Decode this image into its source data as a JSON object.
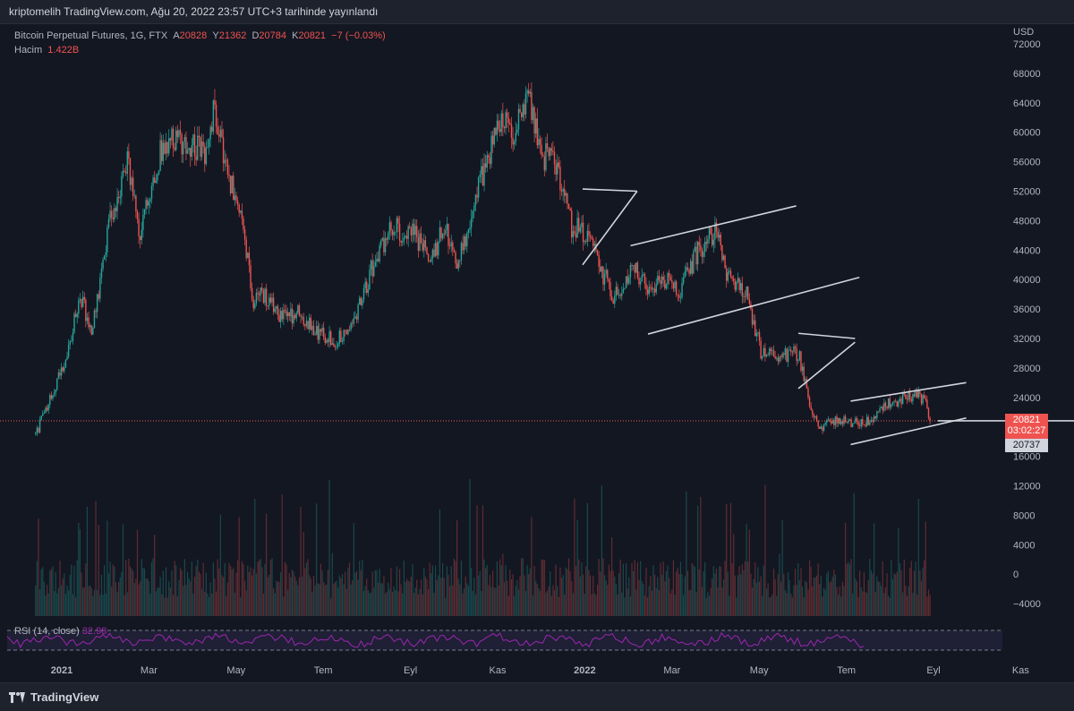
{
  "header": {
    "publish_text": "kriptomelih TradingView.com, Ağu 20, 2022 23:57 UTC+3 tarihinde yayınlandı"
  },
  "legend": {
    "symbol": "Bitcoin Perpetual Futures, 1G, FTX",
    "o_label": "A",
    "o_value": "20828",
    "h_label": "Y",
    "h_value": "21362",
    "l_label": "D",
    "l_value": "20784",
    "c_label": "K",
    "c_value": "20821",
    "change": "−7 (−0.03%)",
    "volume_label": "Hacim",
    "volume_value": "1.422B"
  },
  "axis": {
    "currency": "USD"
  },
  "badges": {
    "last_price": "20821",
    "countdown": "03:02:27",
    "low_price": "20737"
  },
  "rsi": {
    "label": "RSI (14, close)",
    "value": "32.98"
  },
  "footer": {
    "brand": "TradingView"
  },
  "colors": {
    "up": "#26a69a",
    "down": "#ef5350",
    "rsi": "#9c27b0",
    "lines": "#d1d4dc",
    "background": "#131722"
  },
  "chart_data": {
    "type": "candlestick",
    "title": "Bitcoin Perpetual Futures, 1G, FTX",
    "ylabel": "USD",
    "ylim": [
      -6000,
      72000
    ],
    "y_ticks": [
      72000,
      68000,
      64000,
      60000,
      56000,
      52000,
      48000,
      44000,
      40000,
      36000,
      32000,
      28000,
      24000,
      20000,
      16000,
      12000,
      8000,
      4000,
      0,
      -4000
    ],
    "x_ticks": [
      "2021",
      "Mar",
      "May",
      "Tem",
      "Eyl",
      "Kas",
      "2022",
      "Mar",
      "May",
      "Tem",
      "Eyl",
      "Kas"
    ],
    "x_tick_months": [
      0,
      2,
      4,
      6,
      8,
      10,
      12,
      14,
      16,
      18,
      20,
      22
    ],
    "last_close": 20821,
    "last_low_marker": 20737,
    "price_path": [
      {
        "m": -0.6,
        "p": 19000
      },
      {
        "m": 0.1,
        "p": 29000
      },
      {
        "m": 0.4,
        "p": 38000
      },
      {
        "m": 0.7,
        "p": 33000
      },
      {
        "m": 1.1,
        "p": 48000
      },
      {
        "m": 1.5,
        "p": 56000
      },
      {
        "m": 1.8,
        "p": 46000
      },
      {
        "m": 2.3,
        "p": 58000
      },
      {
        "m": 2.8,
        "p": 59000
      },
      {
        "m": 3.3,
        "p": 57000
      },
      {
        "m": 3.5,
        "p": 63000
      },
      {
        "m": 3.75,
        "p": 55000
      },
      {
        "m": 4.1,
        "p": 50000
      },
      {
        "m": 4.4,
        "p": 37000
      },
      {
        "m": 4.6,
        "p": 38000
      },
      {
        "m": 5.0,
        "p": 35000
      },
      {
        "m": 5.5,
        "p": 35500
      },
      {
        "m": 5.8,
        "p": 33000
      },
      {
        "m": 6.3,
        "p": 31500
      },
      {
        "m": 6.8,
        "p": 36000
      },
      {
        "m": 7.2,
        "p": 43000
      },
      {
        "m": 7.6,
        "p": 47000
      },
      {
        "m": 8.1,
        "p": 46000
      },
      {
        "m": 8.5,
        "p": 43000
      },
      {
        "m": 8.8,
        "p": 47500
      },
      {
        "m": 9.1,
        "p": 42000
      },
      {
        "m": 9.4,
        "p": 49000
      },
      {
        "m": 9.7,
        "p": 55000
      },
      {
        "m": 10.1,
        "p": 62000
      },
      {
        "m": 10.4,
        "p": 60000
      },
      {
        "m": 10.7,
        "p": 66000
      },
      {
        "m": 11.0,
        "p": 57000
      },
      {
        "m": 11.3,
        "p": 56000
      },
      {
        "m": 11.7,
        "p": 47000
      },
      {
        "m": 12.0,
        "p": 46500
      },
      {
        "m": 12.4,
        "p": 41000
      },
      {
        "m": 12.7,
        "p": 37500
      },
      {
        "m": 13.1,
        "p": 42000
      },
      {
        "m": 13.5,
        "p": 38500
      },
      {
        "m": 13.9,
        "p": 40000
      },
      {
        "m": 14.2,
        "p": 38500
      },
      {
        "m": 14.6,
        "p": 44000
      },
      {
        "m": 15.0,
        "p": 46500
      },
      {
        "m": 15.3,
        "p": 40000
      },
      {
        "m": 15.7,
        "p": 38500
      },
      {
        "m": 16.05,
        "p": 30000
      },
      {
        "m": 16.5,
        "p": 29500
      },
      {
        "m": 16.9,
        "p": 30000
      },
      {
        "m": 17.2,
        "p": 22000
      },
      {
        "m": 17.4,
        "p": 20000
      },
      {
        "m": 17.8,
        "p": 21000
      },
      {
        "m": 18.4,
        "p": 20300
      },
      {
        "m": 18.9,
        "p": 23000
      },
      {
        "m": 19.3,
        "p": 23800
      },
      {
        "m": 19.6,
        "p": 24500
      },
      {
        "m": 19.8,
        "p": 23500
      },
      {
        "m": 19.92,
        "p": 20821
      }
    ],
    "trendlines": [
      {
        "x1": 11.95,
        "y1": 52300,
        "x2": 13.2,
        "y2": 52000
      },
      {
        "x1": 11.95,
        "y1": 42000,
        "x2": 13.2,
        "y2": 52000
      },
      {
        "x1": 13.05,
        "y1": 44600,
        "x2": 16.85,
        "y2": 50000
      },
      {
        "x1": 13.45,
        "y1": 32600,
        "x2": 18.3,
        "y2": 40300
      },
      {
        "x1": 16.9,
        "y1": 32700,
        "x2": 18.2,
        "y2": 32000
      },
      {
        "x1": 16.9,
        "y1": 25200,
        "x2": 18.2,
        "y2": 31500
      },
      {
        "x1": 18.1,
        "y1": 23500,
        "x2": 20.75,
        "y2": 26000
      },
      {
        "x1": 18.1,
        "y1": 17600,
        "x2": 20.75,
        "y2": 21200
      },
      {
        "x1": 20.1,
        "y1": 20821,
        "x2": 23.4,
        "y2": 20821
      }
    ],
    "rsi_value": 32.98,
    "rsi_bands": [
      70,
      30
    ],
    "grid": false,
    "legend_position": "top-left"
  }
}
